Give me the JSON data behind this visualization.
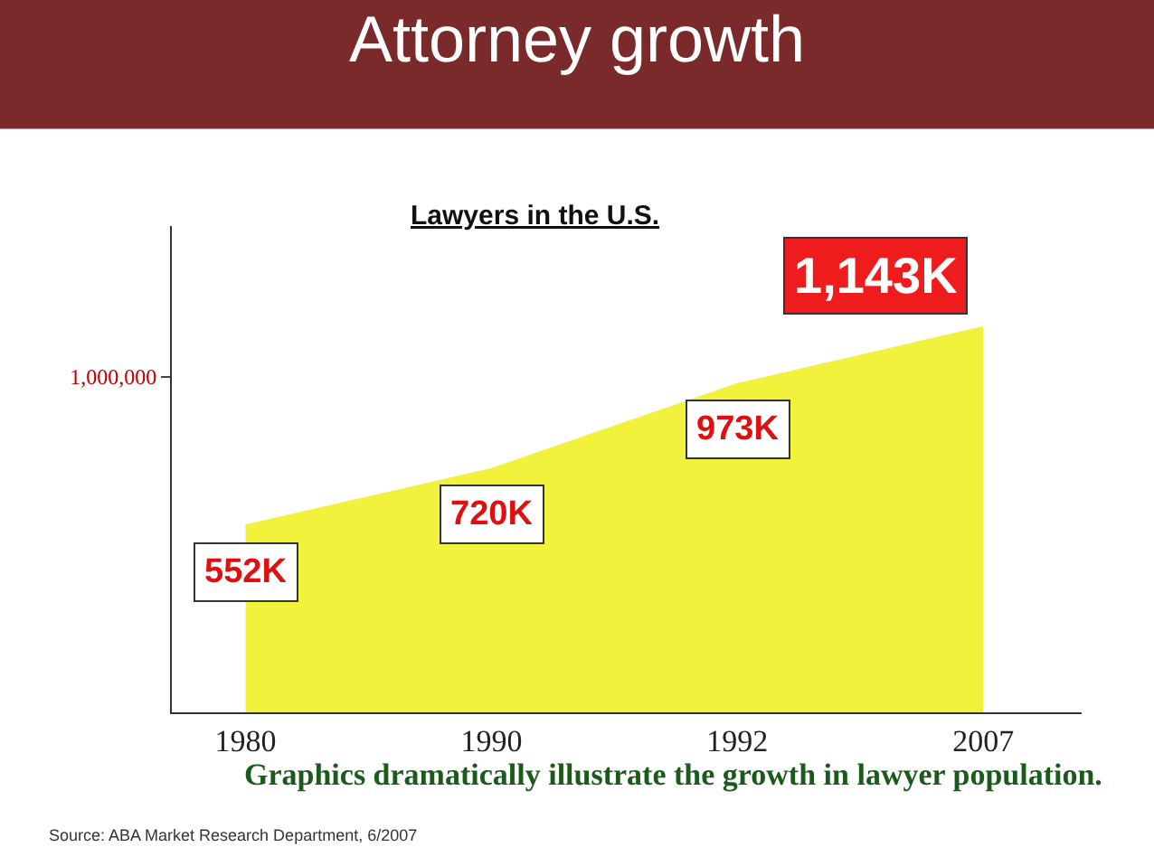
{
  "chart_data": {
    "type": "area",
    "title": "Attorney growth",
    "subtitle": "Lawyers in the U.S.",
    "categories": [
      "1980",
      "1990",
      "1992",
      "2007"
    ],
    "series": [
      {
        "color": "#f2f23c",
        "values": [
          552000,
          720000,
          973000,
          1143000
        ],
        "value_labels": [
          "552K",
          "720K",
          "973K",
          "1,143K"
        ]
      }
    ],
    "ylim": [
      0,
      1450000
    ],
    "yticks": [
      {
        "value": 1000000,
        "label": "1,000,000"
      }
    ],
    "legend": false,
    "annotations": [
      "Graphics dramatically illustrate the growth in lawyer population.",
      "Source: ABA Market Research Department, 6/2007"
    ]
  }
}
